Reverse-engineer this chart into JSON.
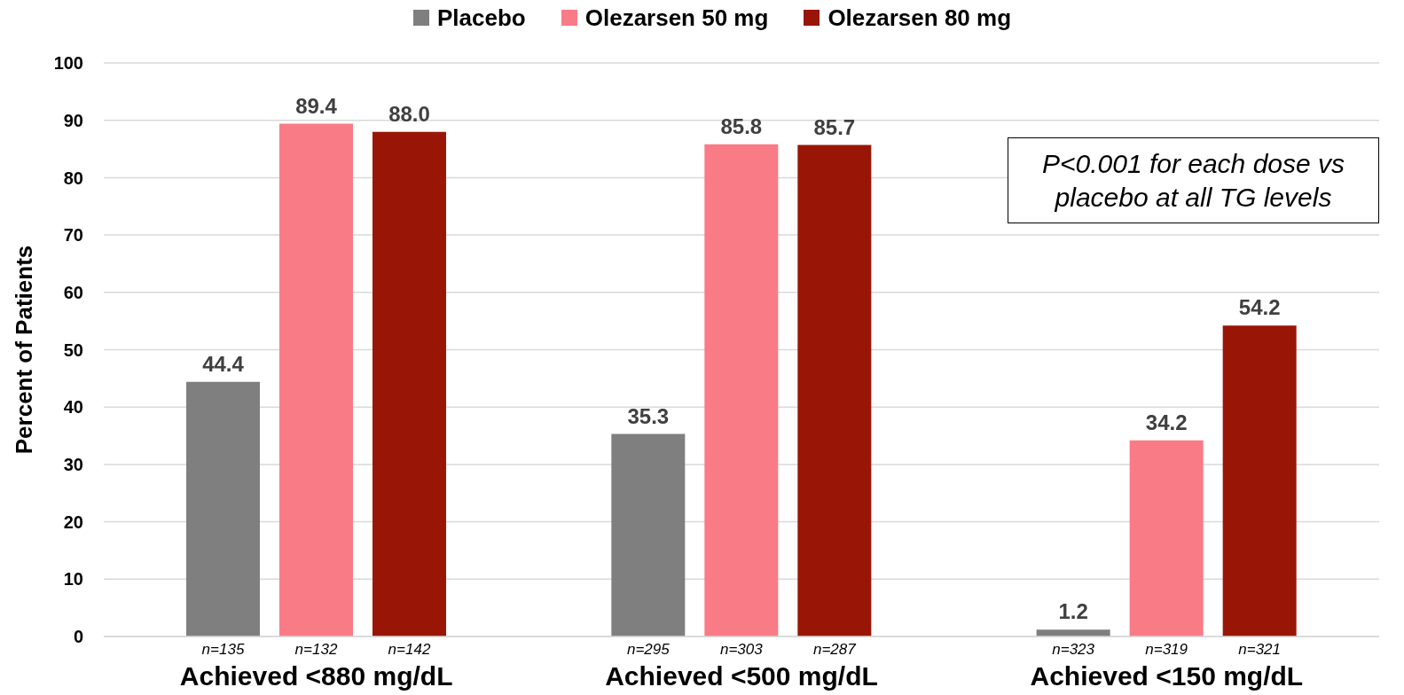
{
  "chart_data": {
    "type": "bar",
    "ylabel": "Percent of Patients",
    "categories": [
      "Achieved <880 mg/dL",
      "Achieved <500 mg/dL",
      "Achieved <150 mg/dL"
    ],
    "series": [
      {
        "name": "Placebo",
        "color": "#7f7f7f",
        "values": [
          44.4,
          35.3,
          1.2
        ],
        "value_labels": [
          "44.4",
          "35.3",
          "1.2"
        ]
      },
      {
        "name": "Olezarsen 50 mg",
        "color": "#f97b85",
        "values": [
          89.4,
          85.8,
          34.2
        ],
        "value_labels": [
          "89.4",
          "85.8",
          "34.2"
        ]
      },
      {
        "name": "Olezarsen 80 mg",
        "color": "#991606",
        "values": [
          88.0,
          85.7,
          54.2
        ],
        "value_labels": [
          "88.0",
          "85.7",
          "54.2"
        ]
      }
    ],
    "ylim": [
      0,
      100
    ],
    "yticks": [
      0,
      10,
      20,
      30,
      40,
      50,
      60,
      70,
      80,
      90,
      100
    ],
    "grid": "y",
    "legend": "top",
    "annotations": [
      "n=135",
      "n=132",
      "n=142",
      "n=295",
      "n=303",
      "n=287",
      "n=323",
      "n=319",
      "n=321",
      "P<0.001 for each dose vs placebo at all TG levels"
    ]
  }
}
